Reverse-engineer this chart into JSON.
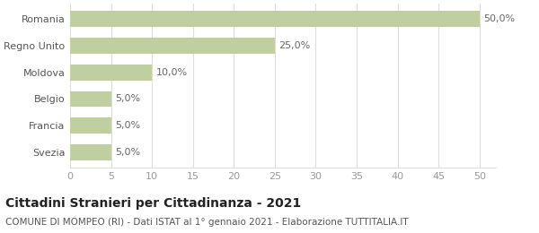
{
  "categories": [
    "Svezia",
    "Francia",
    "Belgio",
    "Moldova",
    "Regno Unito",
    "Romania"
  ],
  "values": [
    5.0,
    5.0,
    5.0,
    10.0,
    25.0,
    50.0
  ],
  "labels": [
    "5,0%",
    "5,0%",
    "5,0%",
    "10,0%",
    "25,0%",
    "50,0%"
  ],
  "bar_color": "#bfcfa0",
  "background_color": "#ffffff",
  "grid_color": "#dddddd",
  "xlim": [
    0,
    50
  ],
  "xticks": [
    0,
    5,
    10,
    15,
    20,
    25,
    30,
    35,
    40,
    45,
    50
  ],
  "title": "Cittadini Stranieri per Cittadinanza - 2021",
  "subtitle": "COMUNE DI MOMPEO (RI) - Dati ISTAT al 1° gennaio 2021 - Elaborazione TUTTITALIA.IT",
  "title_fontsize": 10,
  "subtitle_fontsize": 7.5,
  "label_fontsize": 8,
  "tick_fontsize": 8,
  "ylabel_fontsize": 8
}
